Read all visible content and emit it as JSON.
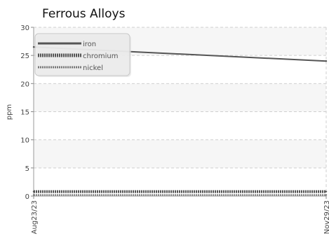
{
  "chart_data": {
    "type": "line",
    "title": "Ferrous Alloys",
    "ylabel": "ppm",
    "xlabel": "",
    "x": [
      "Aug23/23",
      "Nov29/23"
    ],
    "ylim": [
      0,
      30
    ],
    "yticks": [
      0,
      5,
      10,
      15,
      20,
      25,
      30
    ],
    "grid": true,
    "legend_position": "top-left",
    "series": [
      {
        "name": "iron",
        "values": [
          26.5,
          24
        ],
        "color": "#555555",
        "style": "solid"
      },
      {
        "name": "chromium",
        "values": [
          0.8,
          0.8
        ],
        "color": "#555555",
        "style": "dotted-bold"
      },
      {
        "name": "nickel",
        "values": [
          0.2,
          0.2
        ],
        "color": "#777777",
        "style": "dotted"
      }
    ]
  }
}
